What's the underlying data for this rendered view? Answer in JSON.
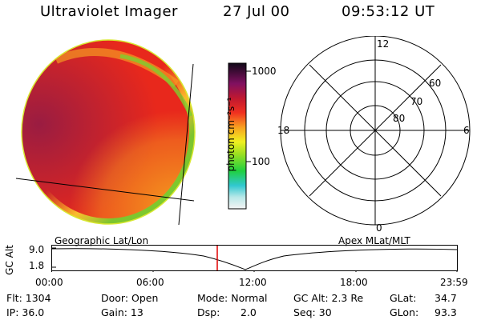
{
  "header": {
    "title": "Ultraviolet Imager",
    "date": "27 Jul 00",
    "time": "09:53:12 UT"
  },
  "colorbar": {
    "unit_label": "photon cm⁻²s⁻¹",
    "ticks": [
      "1000",
      "100"
    ]
  },
  "polar": {
    "mlt_labels": {
      "top": "12",
      "right": "6",
      "bottom": "0",
      "left": "18"
    },
    "lat_labels": [
      "60",
      "70",
      "80"
    ]
  },
  "timeline": {
    "ylabel": "GC Alt",
    "yticks": [
      "9.0",
      "1.8"
    ],
    "left_title": "Geographic Lat/Lon",
    "right_title": "Apex MLat/MLT",
    "xticks": [
      "00:00",
      "06:00",
      "12:00",
      "18:00",
      "23:59"
    ],
    "marker_color": "#e00000"
  },
  "footer": {
    "flt": "Flt: 1304",
    "ip": "IP: 36.0",
    "door": "Door: Open",
    "gain": "Gain: 13",
    "mode": "Mode: Normal",
    "dsp_label": "Dsp:",
    "dsp_value": "2.0",
    "gcalt": "GC Alt: 2.3 Re",
    "seq": "Seq: 30",
    "glat_label": "GLat:",
    "glat_value": "34.7",
    "glon_label": "GLon:",
    "glon_value": "93.3"
  },
  "colors": {
    "image_red": "#e8281c",
    "image_orange": "#f5a020",
    "image_dark": "#9c1840",
    "image_edge_green": "#5fd02a"
  }
}
